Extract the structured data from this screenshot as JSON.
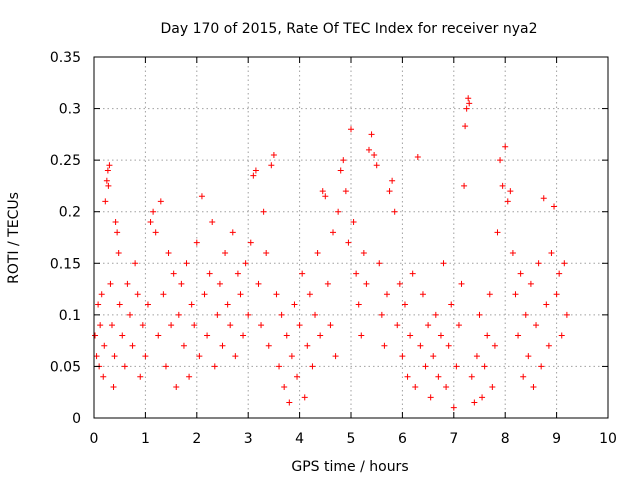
{
  "chart_data": {
    "type": "scatter",
    "title": "Day 170 of 2015, Rate Of TEC Index for receiver nya2",
    "xlabel": "GPS time / hours",
    "ylabel": "ROTI / TECUs",
    "xlim": [
      0,
      10
    ],
    "ylim": [
      0,
      0.35
    ],
    "xticks": [
      0,
      1,
      2,
      3,
      4,
      5,
      6,
      7,
      8,
      9,
      10
    ],
    "xtick_labels": [
      "0",
      "1",
      "2",
      "3",
      "4",
      "5",
      "6",
      "7",
      "8",
      "9",
      "10"
    ],
    "yticks": [
      0,
      0.05,
      0.1,
      0.15,
      0.2,
      0.25,
      0.3,
      0.35
    ],
    "ytick_labels": [
      "0",
      "0.05",
      "0.1",
      "0.15",
      "0.2",
      "0.25",
      "0.3",
      "0.35"
    ],
    "grid": true,
    "marker": "+",
    "color": "#ff0000",
    "series": [
      {
        "name": "ROTI",
        "points": [
          [
            0.02,
            0.08
          ],
          [
            0.05,
            0.06
          ],
          [
            0.08,
            0.11
          ],
          [
            0.1,
            0.05
          ],
          [
            0.12,
            0.09
          ],
          [
            0.15,
            0.12
          ],
          [
            0.18,
            0.04
          ],
          [
            0.2,
            0.07
          ],
          [
            0.22,
            0.21
          ],
          [
            0.25,
            0.23
          ],
          [
            0.27,
            0.24
          ],
          [
            0.3,
            0.245
          ],
          [
            0.28,
            0.225
          ],
          [
            0.32,
            0.13
          ],
          [
            0.35,
            0.09
          ],
          [
            0.38,
            0.03
          ],
          [
            0.4,
            0.06
          ],
          [
            0.42,
            0.19
          ],
          [
            0.45,
            0.18
          ],
          [
            0.48,
            0.16
          ],
          [
            0.5,
            0.11
          ],
          [
            0.55,
            0.08
          ],
          [
            0.6,
            0.05
          ],
          [
            0.65,
            0.13
          ],
          [
            0.7,
            0.1
          ],
          [
            0.75,
            0.07
          ],
          [
            0.8,
            0.15
          ],
          [
            0.85,
            0.12
          ],
          [
            0.9,
            0.04
          ],
          [
            0.95,
            0.09
          ],
          [
            1.0,
            0.06
          ],
          [
            1.05,
            0.11
          ],
          [
            1.1,
            0.19
          ],
          [
            1.15,
            0.2
          ],
          [
            1.2,
            0.18
          ],
          [
            1.25,
            0.08
          ],
          [
            1.3,
            0.21
          ],
          [
            1.35,
            0.12
          ],
          [
            1.4,
            0.05
          ],
          [
            1.45,
            0.16
          ],
          [
            1.5,
            0.09
          ],
          [
            1.55,
            0.14
          ],
          [
            1.6,
            0.03
          ],
          [
            1.65,
            0.1
          ],
          [
            1.7,
            0.13
          ],
          [
            1.75,
            0.07
          ],
          [
            1.8,
            0.15
          ],
          [
            1.85,
            0.04
          ],
          [
            1.9,
            0.11
          ],
          [
            1.95,
            0.09
          ],
          [
            2.0,
            0.17
          ],
          [
            2.05,
            0.06
          ],
          [
            2.1,
            0.215
          ],
          [
            2.15,
            0.12
          ],
          [
            2.2,
            0.08
          ],
          [
            2.25,
            0.14
          ],
          [
            2.3,
            0.19
          ],
          [
            2.35,
            0.05
          ],
          [
            2.4,
            0.1
          ],
          [
            2.45,
            0.13
          ],
          [
            2.5,
            0.07
          ],
          [
            2.55,
            0.16
          ],
          [
            2.6,
            0.11
          ],
          [
            2.65,
            0.09
          ],
          [
            2.7,
            0.18
          ],
          [
            2.75,
            0.06
          ],
          [
            2.8,
            0.14
          ],
          [
            2.85,
            0.12
          ],
          [
            2.9,
            0.08
          ],
          [
            2.95,
            0.15
          ],
          [
            3.0,
            0.1
          ],
          [
            3.05,
            0.17
          ],
          [
            3.1,
            0.235
          ],
          [
            3.15,
            0.24
          ],
          [
            3.2,
            0.13
          ],
          [
            3.25,
            0.09
          ],
          [
            3.3,
            0.2
          ],
          [
            3.35,
            0.16
          ],
          [
            3.4,
            0.07
          ],
          [
            3.45,
            0.245
          ],
          [
            3.5,
            0.255
          ],
          [
            3.55,
            0.12
          ],
          [
            3.6,
            0.05
          ],
          [
            3.65,
            0.1
          ],
          [
            3.7,
            0.03
          ],
          [
            3.75,
            0.08
          ],
          [
            3.8,
            0.015
          ],
          [
            3.85,
            0.06
          ],
          [
            3.9,
            0.11
          ],
          [
            3.95,
            0.04
          ],
          [
            4.0,
            0.09
          ],
          [
            4.05,
            0.14
          ],
          [
            4.1,
            0.02
          ],
          [
            4.15,
            0.07
          ],
          [
            4.2,
            0.12
          ],
          [
            4.25,
            0.05
          ],
          [
            4.3,
            0.1
          ],
          [
            4.35,
            0.16
          ],
          [
            4.4,
            0.08
          ],
          [
            4.45,
            0.22
          ],
          [
            4.5,
            0.215
          ],
          [
            4.55,
            0.13
          ],
          [
            4.6,
            0.09
          ],
          [
            4.65,
            0.18
          ],
          [
            4.7,
            0.06
          ],
          [
            4.75,
            0.2
          ],
          [
            4.8,
            0.24
          ],
          [
            4.85,
            0.25
          ],
          [
            4.9,
            0.22
          ],
          [
            4.95,
            0.17
          ],
          [
            5.0,
            0.28
          ],
          [
            5.05,
            0.19
          ],
          [
            5.1,
            0.14
          ],
          [
            5.15,
            0.11
          ],
          [
            5.2,
            0.08
          ],
          [
            5.25,
            0.16
          ],
          [
            5.3,
            0.13
          ],
          [
            5.35,
            0.26
          ],
          [
            5.4,
            0.275
          ],
          [
            5.45,
            0.255
          ],
          [
            5.5,
            0.245
          ],
          [
            5.55,
            0.15
          ],
          [
            5.6,
            0.1
          ],
          [
            5.65,
            0.07
          ],
          [
            5.7,
            0.12
          ],
          [
            5.75,
            0.22
          ],
          [
            5.8,
            0.23
          ],
          [
            5.85,
            0.2
          ],
          [
            5.9,
            0.09
          ],
          [
            5.95,
            0.13
          ],
          [
            6.0,
            0.06
          ],
          [
            6.05,
            0.11
          ],
          [
            6.1,
            0.04
          ],
          [
            6.15,
            0.08
          ],
          [
            6.2,
            0.14
          ],
          [
            6.25,
            0.03
          ],
          [
            6.3,
            0.253
          ],
          [
            6.35,
            0.07
          ],
          [
            6.4,
            0.12
          ],
          [
            6.45,
            0.05
          ],
          [
            6.5,
            0.09
          ],
          [
            6.55,
            0.02
          ],
          [
            6.6,
            0.06
          ],
          [
            6.65,
            0.1
          ],
          [
            6.7,
            0.04
          ],
          [
            6.75,
            0.08
          ],
          [
            6.8,
            0.15
          ],
          [
            6.85,
            0.03
          ],
          [
            6.9,
            0.07
          ],
          [
            6.95,
            0.11
          ],
          [
            7.0,
            0.01
          ],
          [
            7.05,
            0.05
          ],
          [
            7.1,
            0.09
          ],
          [
            7.15,
            0.13
          ],
          [
            7.2,
            0.225
          ],
          [
            7.22,
            0.283
          ],
          [
            7.25,
            0.3
          ],
          [
            7.28,
            0.31
          ],
          [
            7.3,
            0.305
          ],
          [
            7.35,
            0.04
          ],
          [
            7.4,
            0.015
          ],
          [
            7.45,
            0.06
          ],
          [
            7.5,
            0.1
          ],
          [
            7.55,
            0.02
          ],
          [
            7.6,
            0.05
          ],
          [
            7.65,
            0.08
          ],
          [
            7.7,
            0.12
          ],
          [
            7.75,
            0.03
          ],
          [
            7.8,
            0.07
          ],
          [
            7.85,
            0.18
          ],
          [
            7.9,
            0.25
          ],
          [
            7.95,
            0.225
          ],
          [
            8.0,
            0.263
          ],
          [
            8.05,
            0.21
          ],
          [
            8.1,
            0.22
          ],
          [
            8.15,
            0.16
          ],
          [
            8.2,
            0.12
          ],
          [
            8.25,
            0.08
          ],
          [
            8.3,
            0.14
          ],
          [
            8.35,
            0.04
          ],
          [
            8.4,
            0.1
          ],
          [
            8.45,
            0.06
          ],
          [
            8.5,
            0.13
          ],
          [
            8.55,
            0.03
          ],
          [
            8.6,
            0.09
          ],
          [
            8.65,
            0.15
          ],
          [
            8.7,
            0.05
          ],
          [
            8.75,
            0.213
          ],
          [
            8.8,
            0.11
          ],
          [
            8.85,
            0.07
          ],
          [
            8.9,
            0.16
          ],
          [
            8.95,
            0.205
          ],
          [
            9.0,
            0.12
          ],
          [
            9.05,
            0.14
          ],
          [
            9.1,
            0.08
          ],
          [
            9.15,
            0.15
          ],
          [
            9.2,
            0.1
          ]
        ]
      }
    ]
  }
}
